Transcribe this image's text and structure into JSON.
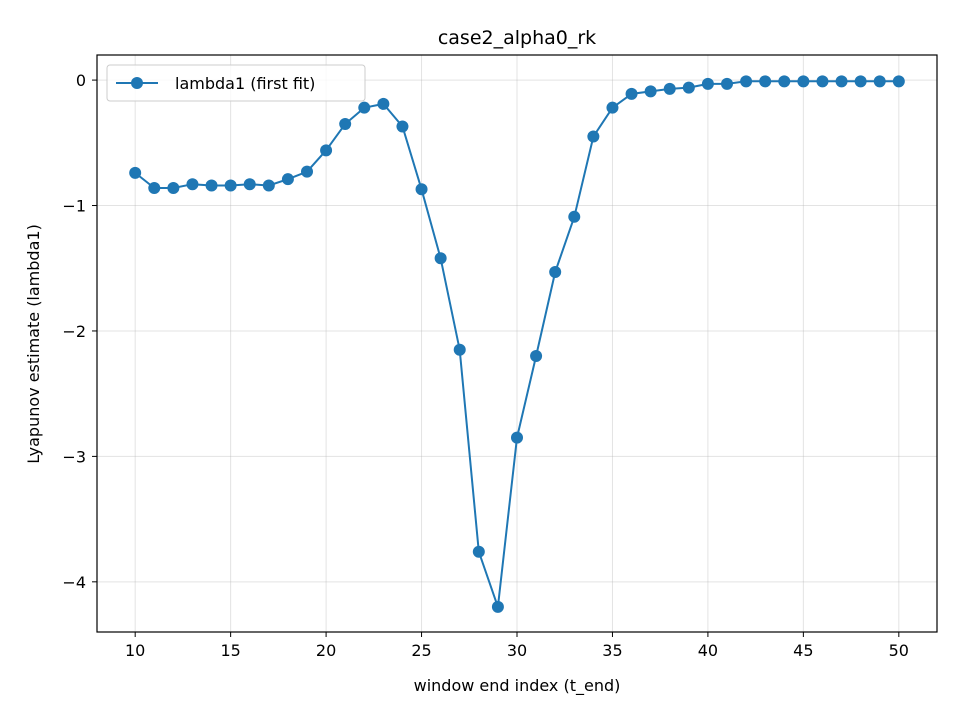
{
  "chart_data": {
    "type": "line",
    "title": "case2_alpha0_rk",
    "xlabel": "window end index (t_end)",
    "ylabel": "Lyapunov estimate (lambda1)",
    "xlim": [
      8,
      52
    ],
    "ylim": [
      -4.4,
      0.2
    ],
    "xticks": [
      10,
      15,
      20,
      25,
      30,
      35,
      40,
      45,
      50
    ],
    "yticks": [
      0,
      -1,
      -2,
      -3,
      -4
    ],
    "grid": true,
    "legend_position": "top-left",
    "series": [
      {
        "name": "lambda1 (first fit)",
        "color": "#1f77b4",
        "marker": "circle",
        "x": [
          10,
          11,
          12,
          13,
          14,
          15,
          16,
          17,
          18,
          19,
          20,
          21,
          22,
          23,
          24,
          25,
          26,
          27,
          28,
          29,
          30,
          31,
          32,
          33,
          34,
          35,
          36,
          37,
          38,
          39,
          40,
          41,
          42,
          43,
          44,
          45,
          46,
          47,
          48,
          49,
          50
        ],
        "y": [
          -0.74,
          -0.86,
          -0.86,
          -0.83,
          -0.84,
          -0.84,
          -0.83,
          -0.84,
          -0.79,
          -0.73,
          -0.56,
          -0.35,
          -0.22,
          -0.19,
          -0.37,
          -0.87,
          -1.42,
          -2.15,
          -3.76,
          -4.2,
          -2.85,
          -2.2,
          -1.53,
          -1.09,
          -0.45,
          -0.22,
          -0.11,
          -0.09,
          -0.07,
          -0.06,
          -0.03,
          -0.03,
          -0.01,
          -0.01,
          -0.01,
          -0.01,
          -0.01,
          -0.01,
          -0.01,
          -0.01,
          -0.01
        ]
      }
    ]
  }
}
